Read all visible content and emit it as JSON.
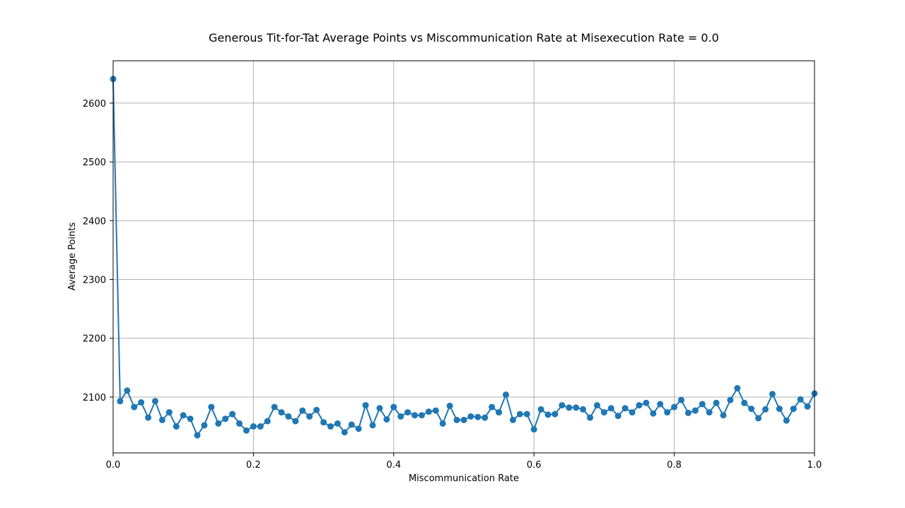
{
  "chart_data": {
    "type": "line",
    "title": "Generous Tit-for-Tat Average Points vs Miscommunication Rate at Misexecution Rate = 0.0",
    "xlabel": "Miscommunication Rate",
    "ylabel": "Average Points",
    "xlim": [
      0.0,
      1.0
    ],
    "ylim": [
      2005,
      2672
    ],
    "xticks": [
      0.0,
      0.2,
      0.4,
      0.6,
      0.8,
      1.0
    ],
    "xtick_labels": [
      "0.0",
      "0.2",
      "0.4",
      "0.6",
      "0.8",
      "1.0"
    ],
    "yticks": [
      2100,
      2200,
      2300,
      2400,
      2500,
      2600
    ],
    "ytick_labels": [
      "2100",
      "2200",
      "2300",
      "2400",
      "2500",
      "2600"
    ],
    "grid": true,
    "marker": "circle",
    "color": "#1f77b4",
    "series": [
      {
        "x": [
          0.0,
          0.01,
          0.02,
          0.03,
          0.04,
          0.05,
          0.06,
          0.07,
          0.08,
          0.09,
          0.1,
          0.11,
          0.12,
          0.13,
          0.14,
          0.15,
          0.16,
          0.17,
          0.18,
          0.19,
          0.2,
          0.21,
          0.22,
          0.23,
          0.24,
          0.25,
          0.26,
          0.27,
          0.28,
          0.29,
          0.3,
          0.31,
          0.32,
          0.33,
          0.34,
          0.35,
          0.36,
          0.37,
          0.38,
          0.39,
          0.4,
          0.41,
          0.42,
          0.43,
          0.44,
          0.45,
          0.46,
          0.47,
          0.48,
          0.49,
          0.5,
          0.51,
          0.52,
          0.53,
          0.54,
          0.55,
          0.56,
          0.57,
          0.58,
          0.59,
          0.6,
          0.61,
          0.62,
          0.63,
          0.64,
          0.65,
          0.66,
          0.67,
          0.68,
          0.69,
          0.7,
          0.71,
          0.72,
          0.73,
          0.74,
          0.75,
          0.76,
          0.77,
          0.78,
          0.79,
          0.8,
          0.81,
          0.82,
          0.83,
          0.84,
          0.85,
          0.86,
          0.87,
          0.88,
          0.89,
          0.9,
          0.91,
          0.92,
          0.93,
          0.94,
          0.95,
          0.96,
          0.97,
          0.98,
          0.99,
          1.0
        ],
        "values": [
          2641,
          2093,
          2111,
          2083,
          2091,
          2065,
          2093,
          2061,
          2074,
          2050,
          2069,
          2063,
          2035,
          2052,
          2083,
          2055,
          2063,
          2071,
          2055,
          2043,
          2050,
          2050,
          2059,
          2083,
          2074,
          2067,
          2059,
          2077,
          2067,
          2078,
          2057,
          2050,
          2055,
          2040,
          2053,
          2046,
          2086,
          2052,
          2081,
          2062,
          2083,
          2067,
          2074,
          2069,
          2069,
          2075,
          2077,
          2055,
          2085,
          2061,
          2061,
          2067,
          2066,
          2065,
          2083,
          2074,
          2104,
          2061,
          2071,
          2071,
          2045,
          2079,
          2070,
          2071,
          2086,
          2082,
          2082,
          2079,
          2065,
          2086,
          2074,
          2081,
          2068,
          2081,
          2074,
          2086,
          2090,
          2072,
          2088,
          2074,
          2083,
          2095,
          2073,
          2077,
          2088,
          2074,
          2090,
          2069,
          2095,
          2115,
          2090,
          2080,
          2064,
          2079,
          2105,
          2080,
          2060,
          2080,
          2096,
          2084,
          2106
        ]
      }
    ]
  }
}
